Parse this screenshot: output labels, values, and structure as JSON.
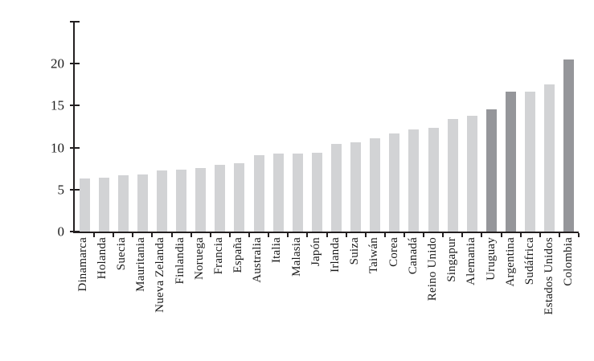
{
  "figure": {
    "background": "#ffffff"
  },
  "chart_data": {
    "type": "bar",
    "title": "",
    "xlabel": "",
    "ylabel": "",
    "categories": [
      "Dinamarca",
      "Holanda",
      "Suecia",
      "Mauritania",
      "Nueva Zelanda",
      "Finlandia",
      "Noruega",
      "Francia",
      "España",
      "Australia",
      "Italia",
      "Malasia",
      "Japón",
      "Irlanda",
      "Suiza",
      "Taiwán",
      "Corea",
      "Canadá",
      "Reino Unido",
      "Singapur",
      "Alemania",
      "Uruguay",
      "Argentina",
      "Sudáfrica",
      "Estados Unidos",
      "Colombia"
    ],
    "values": [
      6.3,
      6.4,
      6.7,
      6.8,
      7.3,
      7.4,
      7.6,
      8.0,
      8.1,
      9.1,
      9.3,
      9.3,
      9.4,
      10.4,
      10.6,
      11.1,
      11.7,
      12.2,
      12.4,
      13.4,
      13.8,
      14.6,
      16.7,
      16.7,
      17.5,
      20.5
    ],
    "highlighted_categories": [
      "Uruguay",
      "Argentina",
      "Colombia"
    ],
    "ylim": [
      0,
      25
    ],
    "yticks": [
      0,
      5,
      10,
      15,
      20
    ],
    "ytick_labels": [
      "0",
      "5",
      "10",
      "15",
      "20"
    ],
    "axis_top_tick": 25,
    "grid": false,
    "legend": false,
    "bar_color": "#d2d3d5",
    "highlight_color": "#95969a",
    "axis_color": "#231f20",
    "text_color": "#1a1a1a"
  }
}
